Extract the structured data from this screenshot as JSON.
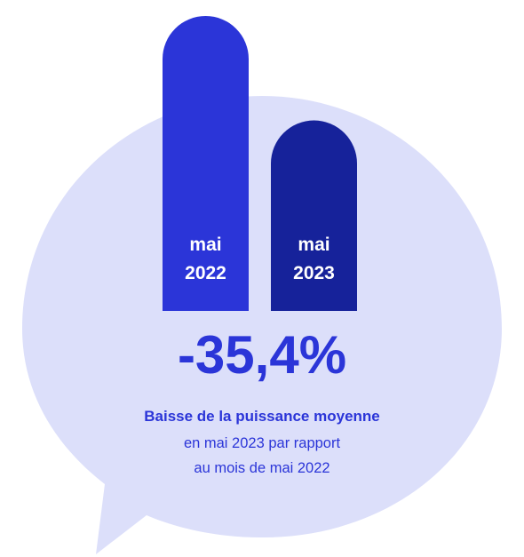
{
  "colors": {
    "bubble": "#dcdffa",
    "bar_2022": "#2b35d8",
    "bar_2023": "#16229a",
    "text": "#2b35d8"
  },
  "chart_data": {
    "type": "bar",
    "categories": [
      [
        "mai",
        "2022"
      ],
      [
        "mai",
        "2023"
      ]
    ],
    "values": [
      100,
      64.6
    ],
    "ylim": [
      0,
      100
    ],
    "annotation": "-35,4%"
  },
  "headline": "-35,4%",
  "caption": {
    "line1": "Baisse de la puissance moyenne",
    "line2": "en mai 2023 par rapport",
    "line3": "au mois de mai 2022"
  }
}
